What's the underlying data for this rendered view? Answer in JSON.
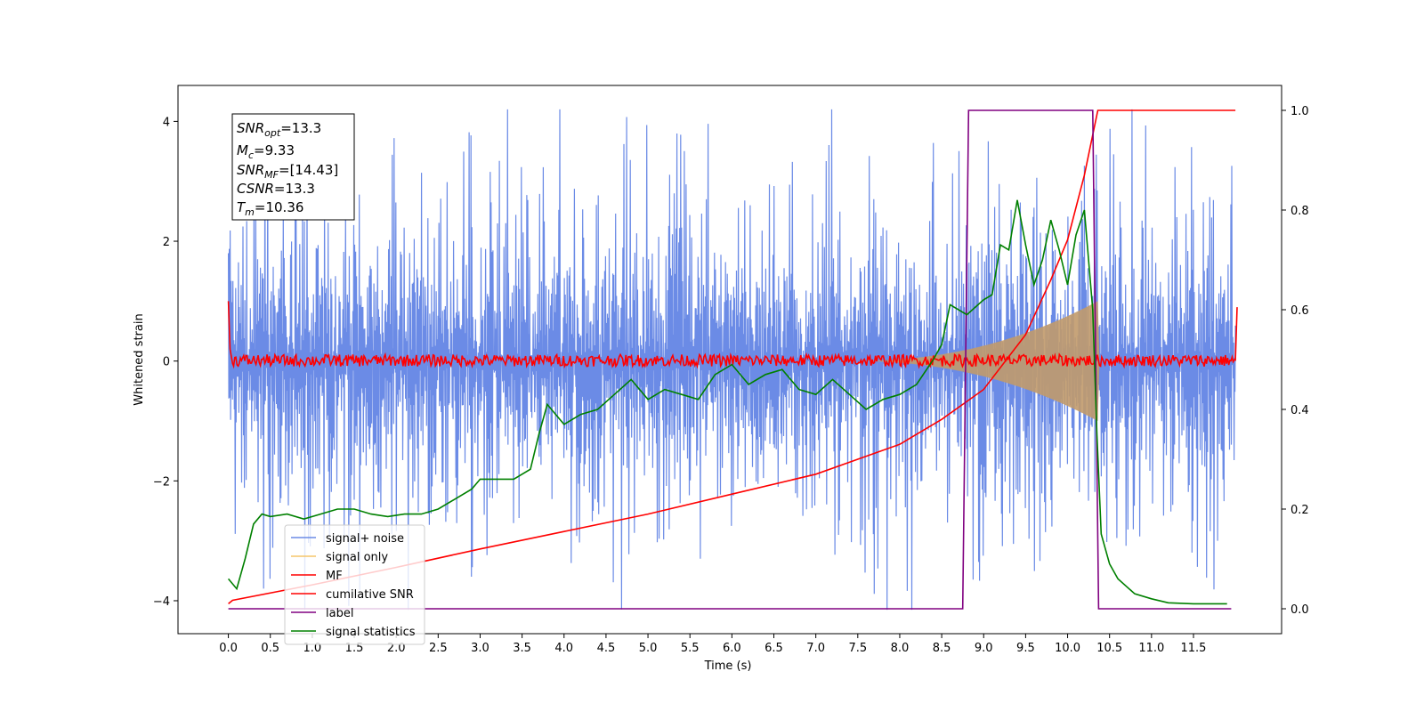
{
  "chart_data": {
    "type": "line",
    "xlabel": "Time (s)",
    "ylabel": "Whitened strain",
    "xlim": [
      -0.6,
      12.55
    ],
    "ylim": [
      -4.55,
      4.6
    ],
    "y2lim": [
      -0.05,
      1.05
    ],
    "xticks": [
      0.0,
      0.5,
      1.0,
      1.5,
      2.0,
      2.5,
      3.0,
      3.5,
      4.0,
      4.5,
      5.0,
      5.5,
      6.0,
      6.5,
      7.0,
      7.5,
      8.0,
      8.5,
      9.0,
      9.5,
      10.0,
      10.5,
      11.0,
      11.5
    ],
    "xtick_labels": [
      "0.0",
      "0.5",
      "1.0",
      "1.5",
      "2.0",
      "2.5",
      "3.0",
      "3.5",
      "4.0",
      "4.5",
      "5.0",
      "5.5",
      "6.0",
      "6.5",
      "7.0",
      "7.5",
      "8.0",
      "8.5",
      "9.0",
      "9.5",
      "10.0",
      "10.5",
      "11.0",
      "11.5"
    ],
    "yticks": [
      -4,
      -2,
      0,
      2,
      4
    ],
    "ytick_labels": [
      "−4",
      "−2",
      "0",
      "2",
      "4"
    ],
    "y2ticks": [
      0.0,
      0.2,
      0.4,
      0.6,
      0.8,
      1.0
    ],
    "y2tick_labels": [
      "0.0",
      "0.2",
      "0.4",
      "0.6",
      "0.8",
      "1.0"
    ],
    "legend": {
      "placement": "lower-left",
      "entries": [
        {
          "label": "signal+ noise",
          "color": "#6b8be6"
        },
        {
          "label": "signal only",
          "color": "#f5c66b"
        },
        {
          "label": "MF",
          "color": "#ff0000"
        },
        {
          "label": "cumilative SNR",
          "color": "#ff0000"
        },
        {
          "label": "label",
          "color": "#800080"
        },
        {
          "label": "signal statistics",
          "color": "#008000"
        }
      ]
    },
    "info_box": {
      "snr_opt": {
        "symbol": "SNR",
        "sub": "opt",
        "value": "=13.3"
      },
      "mc": {
        "symbol": "M",
        "sub": "c",
        "value": "=9.33"
      },
      "snr_mf": {
        "symbol": "SNR",
        "sub": "MF",
        "value": "=[14.43]"
      },
      "csnr": {
        "symbol": "CSNR",
        "sub": "",
        "value": "=13.3"
      },
      "tm": {
        "symbol": "T",
        "sub": "m",
        "value": "=10.36"
      }
    },
    "series": [
      {
        "name": "signal+ noise",
        "axis": "left",
        "color": "#6b8be6",
        "noise_band_envelope": {
          "typical": 2.0,
          "peak_max": 4.2,
          "peak_min": -4.15,
          "t_start": 0.0,
          "t_end": 12.0
        }
      },
      {
        "name": "signal only",
        "axis": "left",
        "color": "#c19a6b",
        "chirp_envelope": {
          "t_start": 7.5,
          "t_merge": 10.36,
          "amp_end": 0.95
        }
      },
      {
        "name": "MF",
        "axis": "left",
        "color": "#ff0000",
        "x": [
          0.0,
          0.02,
          0.05,
          12.0,
          12.02
        ],
        "y": [
          1.0,
          0.2,
          0.0,
          0.0,
          0.9
        ]
      },
      {
        "name": "cumilative SNR",
        "axis": "right",
        "color": "#ff0000",
        "x": [
          0.0,
          0.05,
          1.0,
          2.0,
          3.0,
          4.0,
          5.0,
          6.0,
          7.0,
          7.5,
          8.0,
          8.5,
          9.0,
          9.5,
          9.8,
          10.0,
          10.2,
          10.36,
          10.4,
          12.0
        ],
        "y": [
          0.01,
          0.017,
          0.048,
          0.083,
          0.12,
          0.155,
          0.19,
          0.23,
          0.27,
          0.3,
          0.33,
          0.38,
          0.44,
          0.55,
          0.66,
          0.74,
          0.87,
          1.0,
          1.0,
          1.0
        ]
      },
      {
        "name": "label",
        "axis": "right",
        "color": "#800080",
        "x": [
          0.0,
          8.75,
          8.82,
          10.3,
          10.37,
          11.95
        ],
        "y": [
          0.0,
          0.0,
          1.0,
          1.0,
          0.0,
          0.0
        ]
      },
      {
        "name": "signal statistics",
        "axis": "right",
        "color": "#008000",
        "x": [
          0.0,
          0.1,
          0.2,
          0.3,
          0.4,
          0.5,
          0.7,
          0.9,
          1.1,
          1.3,
          1.5,
          1.7,
          1.9,
          2.1,
          2.3,
          2.5,
          2.7,
          2.9,
          3.0,
          3.2,
          3.4,
          3.6,
          3.7,
          3.8,
          3.9,
          4.0,
          4.1,
          4.2,
          4.4,
          4.6,
          4.8,
          5.0,
          5.2,
          5.4,
          5.6,
          5.8,
          6.0,
          6.2,
          6.4,
          6.6,
          6.8,
          7.0,
          7.2,
          7.4,
          7.6,
          7.8,
          8.0,
          8.2,
          8.4,
          8.5,
          8.6,
          8.8,
          9.0,
          9.1,
          9.2,
          9.3,
          9.4,
          9.5,
          9.6,
          9.7,
          9.8,
          9.9,
          10.0,
          10.1,
          10.2,
          10.3,
          10.35,
          10.4,
          10.5,
          10.6,
          10.8,
          11.0,
          11.2,
          11.5,
          11.9
        ],
        "y": [
          0.06,
          0.04,
          0.1,
          0.17,
          0.19,
          0.185,
          0.19,
          0.18,
          0.19,
          0.2,
          0.2,
          0.19,
          0.185,
          0.19,
          0.19,
          0.2,
          0.22,
          0.24,
          0.26,
          0.26,
          0.26,
          0.28,
          0.35,
          0.41,
          0.39,
          0.37,
          0.38,
          0.39,
          0.4,
          0.43,
          0.46,
          0.42,
          0.44,
          0.43,
          0.42,
          0.47,
          0.49,
          0.45,
          0.47,
          0.48,
          0.44,
          0.43,
          0.46,
          0.43,
          0.4,
          0.42,
          0.43,
          0.45,
          0.5,
          0.53,
          0.61,
          0.59,
          0.62,
          0.63,
          0.73,
          0.72,
          0.82,
          0.73,
          0.65,
          0.7,
          0.78,
          0.72,
          0.65,
          0.75,
          0.8,
          0.6,
          0.35,
          0.15,
          0.09,
          0.06,
          0.03,
          0.02,
          0.012,
          0.01,
          0.01
        ]
      }
    ]
  }
}
